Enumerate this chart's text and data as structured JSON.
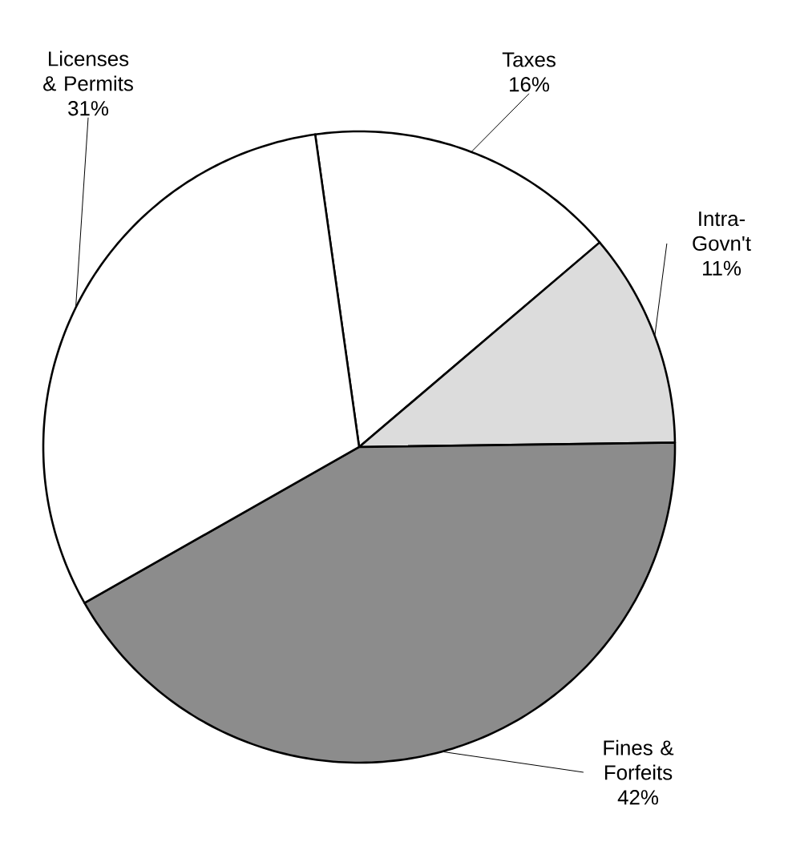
{
  "chart_data": {
    "type": "pie",
    "categories": [
      "Taxes",
      "Intra-Govn't",
      "Fines & Forfeits",
      "Licenses & Permits"
    ],
    "values": [
      16,
      11,
      42,
      31
    ],
    "colors": [
      "#ffffff",
      "#dcdcdc",
      "#8c8c8c",
      "#ffffff"
    ],
    "value_labels": [
      "16%",
      "11%",
      "42%",
      "31%"
    ]
  }
}
